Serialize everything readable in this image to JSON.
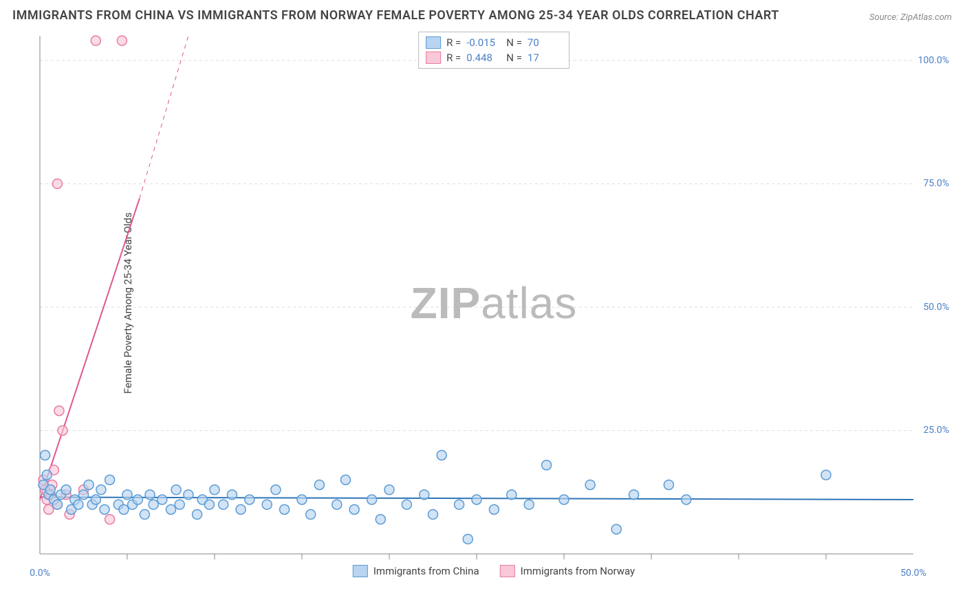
{
  "title": "IMMIGRANTS FROM CHINA VS IMMIGRANTS FROM NORWAY FEMALE POVERTY AMONG 25-34 YEAR OLDS CORRELATION CHART",
  "source": "Source: ZipAtlas.com",
  "y_axis_label": "Female Poverty Among 25-34 Year Olds",
  "watermark_bold": "ZIP",
  "watermark_light": "atlas",
  "chart": {
    "type": "scatter",
    "xlim": [
      0,
      50
    ],
    "ylim": [
      0,
      105
    ],
    "x_ticks_major": [
      0,
      50
    ],
    "x_ticks_minor": [
      5,
      10,
      15,
      20,
      25,
      30,
      35,
      40,
      45
    ],
    "x_tick_labels": [
      "0.0%",
      "50.0%"
    ],
    "y_ticks": [
      25,
      50,
      75,
      100
    ],
    "y_tick_labels": [
      "25.0%",
      "50.0%",
      "75.0%",
      "100.0%"
    ],
    "background_color": "#ffffff",
    "grid_color": "#dddddd",
    "axis_color": "#888888",
    "marker_radius": 7,
    "marker_stroke_width": 1.5,
    "line_width": 2,
    "series": [
      {
        "name": "Immigrants from China",
        "color_fill": "#b8d4f0",
        "color_stroke": "#5a9bd5",
        "line_color": "#2e75b6",
        "R": "-0.015",
        "N": "70",
        "trend": {
          "x1": 0,
          "y1": 11.5,
          "x2": 50,
          "y2": 11.0
        },
        "points": [
          [
            0.2,
            14
          ],
          [
            0.3,
            20
          ],
          [
            0.4,
            16
          ],
          [
            0.5,
            12
          ],
          [
            0.6,
            13
          ],
          [
            0.8,
            11
          ],
          [
            1.0,
            10
          ],
          [
            1.2,
            12
          ],
          [
            1.5,
            13
          ],
          [
            1.8,
            9
          ],
          [
            2.0,
            11
          ],
          [
            2.2,
            10
          ],
          [
            2.5,
            12
          ],
          [
            2.8,
            14
          ],
          [
            3.0,
            10
          ],
          [
            3.2,
            11
          ],
          [
            3.5,
            13
          ],
          [
            3.7,
            9
          ],
          [
            4.0,
            15
          ],
          [
            4.5,
            10
          ],
          [
            4.8,
            9
          ],
          [
            5.0,
            12
          ],
          [
            5.3,
            10
          ],
          [
            5.6,
            11
          ],
          [
            6.0,
            8
          ],
          [
            6.3,
            12
          ],
          [
            6.5,
            10
          ],
          [
            7.0,
            11
          ],
          [
            7.5,
            9
          ],
          [
            7.8,
            13
          ],
          [
            8.0,
            10
          ],
          [
            8.5,
            12
          ],
          [
            9.0,
            8
          ],
          [
            9.3,
            11
          ],
          [
            9.7,
            10
          ],
          [
            10.0,
            13
          ],
          [
            10.5,
            10
          ],
          [
            11.0,
            12
          ],
          [
            11.5,
            9
          ],
          [
            12.0,
            11
          ],
          [
            13.0,
            10
          ],
          [
            13.5,
            13
          ],
          [
            14.0,
            9
          ],
          [
            15.0,
            11
          ],
          [
            15.5,
            8
          ],
          [
            16.0,
            14
          ],
          [
            17.0,
            10
          ],
          [
            17.5,
            15
          ],
          [
            18.0,
            9
          ],
          [
            19.0,
            11
          ],
          [
            19.5,
            7
          ],
          [
            20.0,
            13
          ],
          [
            21.0,
            10
          ],
          [
            22.0,
            12
          ],
          [
            22.5,
            8
          ],
          [
            23.0,
            20
          ],
          [
            24.0,
            10
          ],
          [
            24.5,
            3
          ],
          [
            25.0,
            11
          ],
          [
            26.0,
            9
          ],
          [
            27.0,
            12
          ],
          [
            28.0,
            10
          ],
          [
            29.0,
            18
          ],
          [
            30.0,
            11
          ],
          [
            31.5,
            14
          ],
          [
            33.0,
            5
          ],
          [
            34.0,
            12
          ],
          [
            36.0,
            14
          ],
          [
            37.0,
            11
          ],
          [
            45.0,
            16
          ]
        ]
      },
      {
        "name": "Immigrants from Norway",
        "color_fill": "#f8c8d8",
        "color_stroke": "#e87ba4",
        "line_color": "#e05590",
        "R": "0.448",
        "N": "17",
        "trend": {
          "x1": 0,
          "y1": 11,
          "x2": 5.7,
          "y2": 72
        },
        "trend_dash": {
          "x1": 5.7,
          "y1": 72,
          "x2": 8.5,
          "y2": 105
        },
        "points": [
          [
            0.2,
            15
          ],
          [
            0.3,
            13
          ],
          [
            0.4,
            11
          ],
          [
            0.5,
            9
          ],
          [
            0.6,
            12
          ],
          [
            0.7,
            14
          ],
          [
            0.8,
            17
          ],
          [
            1.0,
            10
          ],
          [
            1.1,
            29
          ],
          [
            1.3,
            25
          ],
          [
            1.5,
            12
          ],
          [
            1.7,
            8
          ],
          [
            1.0,
            75
          ],
          [
            2.5,
            13
          ],
          [
            3.2,
            104
          ],
          [
            4.0,
            7
          ],
          [
            4.7,
            104
          ]
        ]
      }
    ]
  },
  "legend_top": {
    "rows": [
      {
        "swatch_fill": "#b8d4f0",
        "swatch_stroke": "#5a9bd5",
        "r_label": "R =",
        "r_val": "-0.015",
        "n_label": "N =",
        "n_val": "70"
      },
      {
        "swatch_fill": "#f8c8d8",
        "swatch_stroke": "#e87ba4",
        "r_label": "R =",
        "r_val": "0.448",
        "n_label": "N =",
        "n_val": "17"
      }
    ]
  },
  "legend_bottom": {
    "items": [
      {
        "swatch_fill": "#b8d4f0",
        "swatch_stroke": "#5a9bd5",
        "label": "Immigrants from China"
      },
      {
        "swatch_fill": "#f8c8d8",
        "swatch_stroke": "#e87ba4",
        "label": "Immigrants from Norway"
      }
    ]
  }
}
